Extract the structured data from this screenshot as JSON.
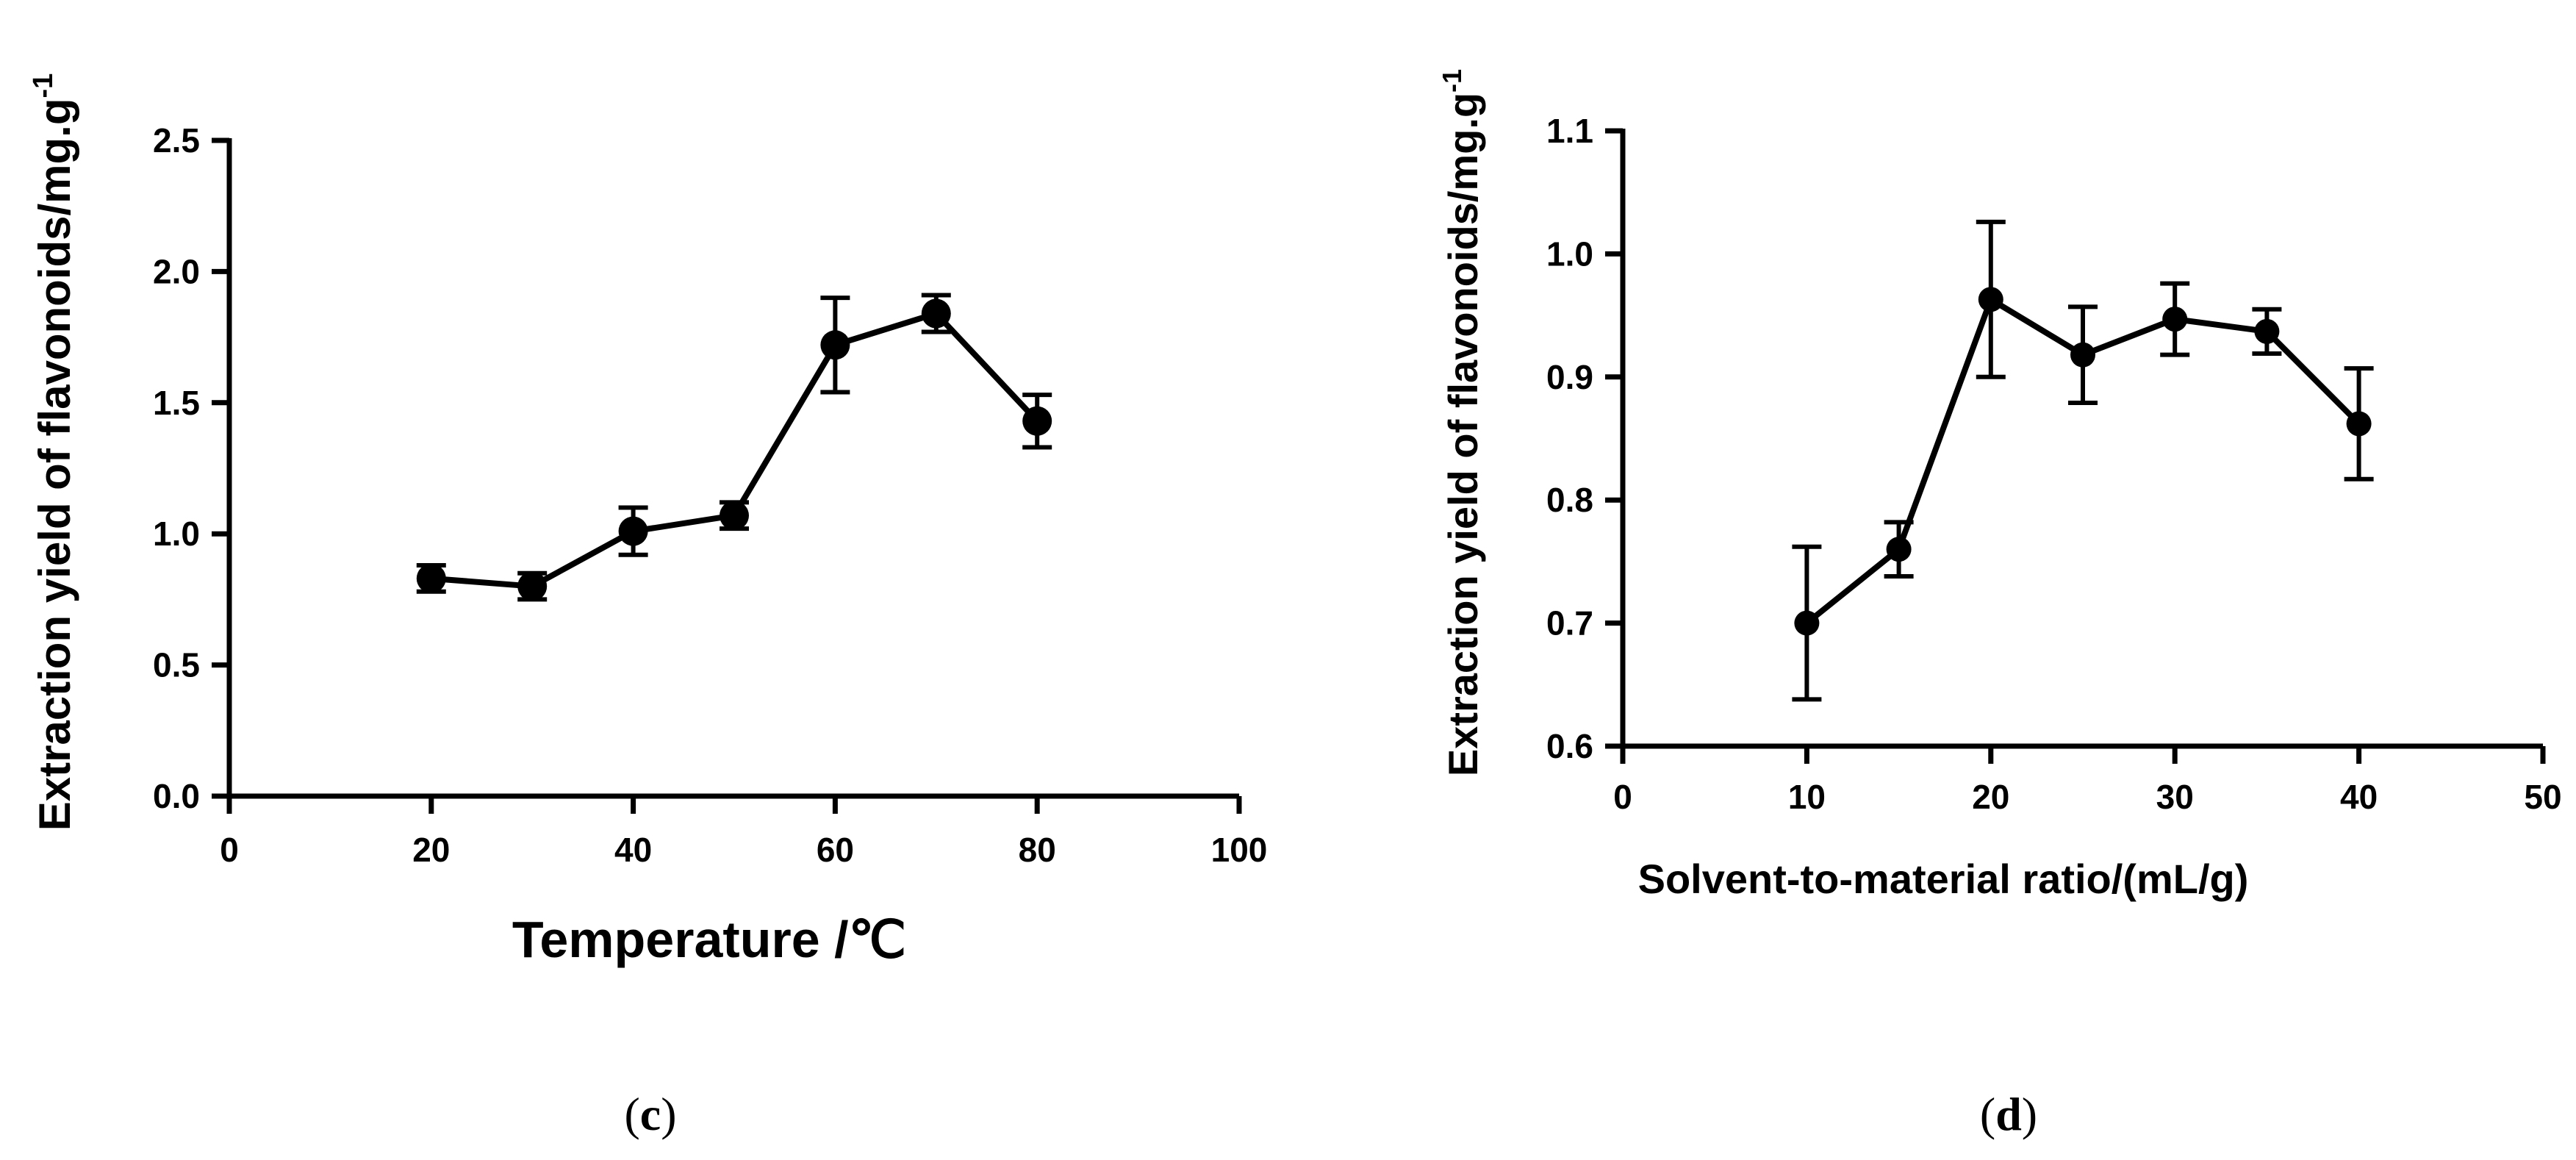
{
  "chart_data": [
    {
      "id": "c",
      "type": "line",
      "panel_label": "c",
      "xlabel": "Temperature /℃",
      "ylabel": "Extraction yield of flavonoids/mg.g",
      "ylabel_sup": "-1",
      "xlim": [
        0,
        100
      ],
      "ylim": [
        0.0,
        2.5
      ],
      "xticks": [
        "0",
        "20",
        "40",
        "60",
        "80",
        "100"
      ],
      "yticks": [
        "0.0",
        "0.5",
        "1.0",
        "1.5",
        "2.0",
        "2.5"
      ],
      "series": [
        {
          "name": "Temperature",
          "x": [
            20,
            30,
            40,
            50,
            60,
            70,
            80
          ],
          "y": [
            0.83,
            0.8,
            1.01,
            1.07,
            1.72,
            1.84,
            1.43
          ],
          "err": [
            0.05,
            0.05,
            0.09,
            0.05,
            0.18,
            0.07,
            0.1
          ]
        }
      ],
      "legend": "none",
      "grid": false
    },
    {
      "id": "d",
      "type": "line",
      "panel_label": "d",
      "xlabel": "Solvent-to-material ratio/(mL/g)",
      "ylabel": "Extraction yield of flavonoids/mg.g",
      "ylabel_sup": "-1",
      "xlim": [
        0,
        50
      ],
      "ylim": [
        0.6,
        1.1
      ],
      "xticks": [
        "0",
        "10",
        "20",
        "30",
        "40",
        "50"
      ],
      "yticks": [
        "0.6",
        "0.7",
        "0.8",
        "0.9",
        "1.0",
        "1.1"
      ],
      "series": [
        {
          "name": "Solvent-to-material ratio",
          "x": [
            10,
            15,
            20,
            25,
            30,
            35,
            40
          ],
          "y": [
            0.7,
            0.76,
            0.963,
            0.918,
            0.947,
            0.937,
            0.862
          ],
          "err": [
            0.062,
            0.022,
            0.063,
            0.039,
            0.029,
            0.018,
            0.045
          ]
        }
      ],
      "legend": "none",
      "grid": false
    }
  ]
}
